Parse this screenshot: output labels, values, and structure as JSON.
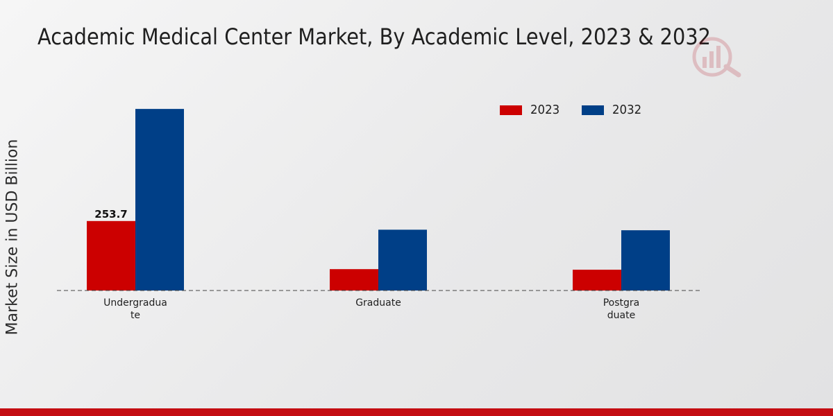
{
  "chart_data": {
    "type": "bar",
    "title": "Academic Medical Center Market, By Academic Level, 2023 & 2032",
    "ylabel": "Market Size in USD Billion",
    "xlabel": "",
    "categories": [
      "Undergradua\nte",
      "Graduate",
      "Postgra\nduate"
    ],
    "series": [
      {
        "name": "2023",
        "color": "#cc0000",
        "values": [
          253.7,
          78,
          76
        ]
      },
      {
        "name": "2032",
        "color": "#003f87",
        "values": [
          663,
          222,
          220
        ]
      }
    ],
    "data_labels": [
      {
        "series": 0,
        "index": 0,
        "text": "253.7"
      }
    ],
    "ylim": [
      0,
      1000
    ],
    "grid": false,
    "legend_position": "top-right"
  },
  "colors": {
    "accent": "#c40d12",
    "series_2023": "#cc0000",
    "series_2032": "#003f87"
  },
  "logo": {
    "icon": "brand-logo-icon"
  }
}
